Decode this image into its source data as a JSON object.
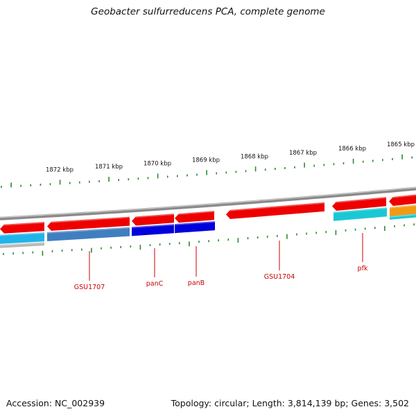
{
  "title": "Geobacter sulfurreducens PCA, complete genome",
  "footer": {
    "accession": "Accession: NC_002939",
    "summary": "Topology: circular; Length: 3,814,139 bp; Genes: 3,502"
  },
  "scale_labels": [
    "1872 kbp",
    "1871 kbp",
    "1870 kbp",
    "1869 kbp",
    "1868 kbp",
    "1867 kbp",
    "1866 kbp",
    "1865 kbp"
  ],
  "gene_labels": [
    "GSU1707",
    "panC",
    "panB",
    "GSU1704",
    "pfk"
  ],
  "colors": {
    "backbone": "#8a8a8a",
    "forward_cds": "#ee0000",
    "gene_label": "#cc0000",
    "ticks": "#2a8a2a",
    "track_steelblue": "#3f7fc0",
    "track_blue": "#0000dd",
    "track_cyan": "#19c8d4",
    "track_skyblue": "#1fb4ea",
    "track_orange": "#f39a12",
    "track_gray": "#b8b8b8"
  }
}
